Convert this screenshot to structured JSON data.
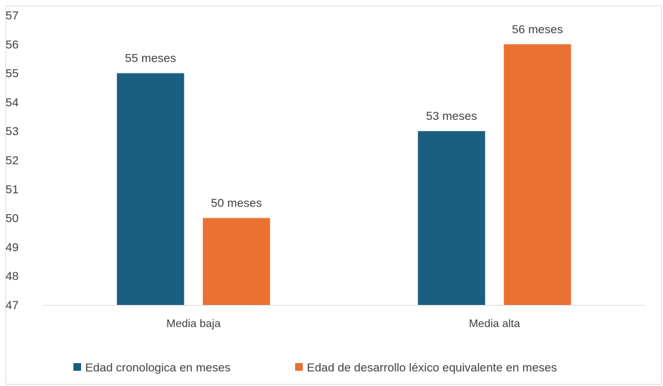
{
  "chart_data": {
    "type": "bar",
    "categories": [
      "Media baja",
      "Media alta"
    ],
    "series": [
      {
        "name": "Edad cronologica en meses",
        "values": [
          55,
          53
        ],
        "color": "#1a5e80",
        "labels": [
          "55 meses",
          "53 meses"
        ]
      },
      {
        "name": "Edad de desarrollo léxico equivalente en meses",
        "values": [
          50,
          56
        ],
        "color": "#e97132",
        "labels": [
          "50 meses",
          "56 meses"
        ]
      }
    ],
    "ylim": [
      47,
      57
    ],
    "yticks": [
      "47",
      "48",
      "49",
      "50",
      "51",
      "52",
      "53",
      "54",
      "55",
      "56",
      "57"
    ],
    "legend_position": "bottom",
    "grid": false
  }
}
